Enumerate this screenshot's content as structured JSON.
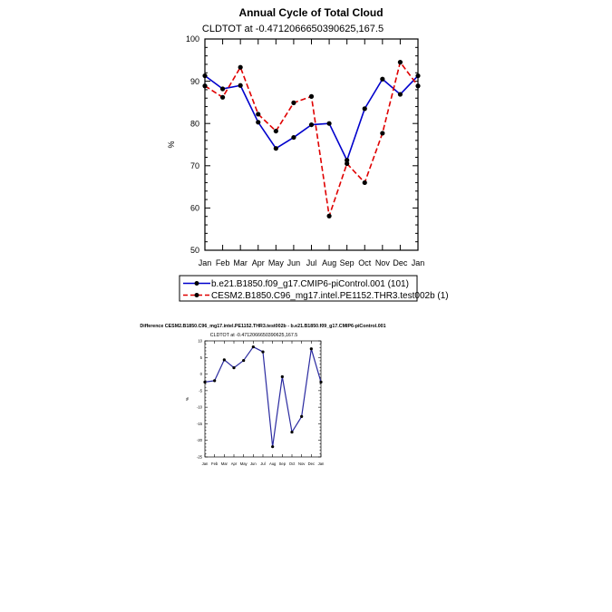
{
  "chart_data": [
    {
      "type": "line",
      "title": "Annual Cycle of Total Cloud",
      "subtitle": "CLDTOT at -0.4712066650390625,167.5",
      "xlabel": "",
      "ylabel": "%",
      "categories": [
        "Jan",
        "Feb",
        "Mar",
        "Apr",
        "May",
        "Jun",
        "Jul",
        "Aug",
        "Sep",
        "Oct",
        "Nov",
        "Dec",
        "Jan"
      ],
      "ylim": [
        50,
        100
      ],
      "yticks": [
        "50",
        "60",
        "70",
        "80",
        "90",
        "100"
      ],
      "grid": false,
      "legend_position": "bottom",
      "series": [
        {
          "name": "b.e21.B1850.f09_g17.CMIP6-piControl.001 (101)",
          "color": "#0000cc",
          "dash": "solid",
          "values": [
            91.3,
            88.2,
            89.0,
            80.3,
            74.1,
            76.7,
            79.7,
            80.0,
            71.3,
            83.5,
            90.5,
            86.9,
            91.3
          ]
        },
        {
          "name": "CESM2.B1850.C96_mg17.intel.PE1152.THR3.test002b (1)",
          "color": "#e00000",
          "dash": "dashed",
          "values": [
            88.9,
            86.2,
            93.3,
            82.2,
            78.2,
            84.9,
            86.4,
            58.1,
            70.5,
            66.0,
            77.7,
            94.5,
            88.9
          ]
        }
      ]
    },
    {
      "type": "line",
      "title": "Difference CESM2.B1850.C96_mg17.intel.PE1152.THR3.test002b - b.e21.B1850.f09_g17.CMIP6-piControl.001",
      "subtitle": "CLDTOT at -0.4712066650390625,167.5",
      "xlabel": "",
      "ylabel": "%",
      "categories": [
        "Jan",
        "Feb",
        "Mar",
        "Apr",
        "May",
        "Jun",
        "Jul",
        "Aug",
        "Sep",
        "Oct",
        "Nov",
        "Dec",
        "Jan"
      ],
      "ylim": [
        -25,
        10
      ],
      "yticks": [
        "-25",
        "-20",
        "-15",
        "-10",
        "-5",
        "0",
        "5",
        "10"
      ],
      "grid": false,
      "series": [
        {
          "name": "difference",
          "color": "#2a2aa0",
          "dash": "solid",
          "values": [
            -2.4,
            -2.0,
            4.3,
            1.9,
            4.1,
            8.2,
            6.7,
            -21.9,
            -0.8,
            -17.5,
            -12.8,
            7.6,
            -2.4
          ]
        }
      ]
    }
  ]
}
